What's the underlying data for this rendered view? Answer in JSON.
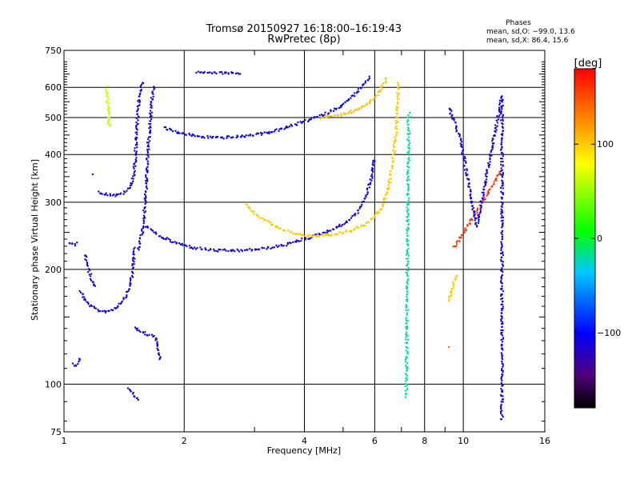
{
  "chart_data": {
    "type": "scatter",
    "title": "Tromsø 20150927 16:18:00–16:19:43",
    "subtitle": "RwPretec (8p)",
    "xlabel": "Frequency [MHz]",
    "ylabel": "Stationary phase Virtual Height [km]",
    "x_scale": "log",
    "y_scale": "log",
    "xlim": [
      1,
      16
    ],
    "ylim": [
      75,
      750
    ],
    "x_ticks": [
      1,
      2,
      4,
      6,
      8,
      10,
      16
    ],
    "x_tick_labels": [
      "1",
      "2",
      "4",
      "6",
      "8",
      "10",
      "16"
    ],
    "x_minor": [
      3,
      5,
      7,
      9
    ],
    "y_ticks": [
      75,
      100,
      200,
      300,
      400,
      500,
      600,
      750
    ],
    "y_tick_labels": [
      "75",
      "100",
      "200",
      "300",
      "400",
      "500",
      "600",
      "750"
    ],
    "grid": true,
    "phases_block": {
      "heading": "Phases",
      "line_o": "mean, sd,O: −99.0, 13.6",
      "line_x": "mean, sd,X:  86.4, 15.6"
    },
    "colorbar": {
      "label": "[deg]",
      "range": [
        -180,
        180
      ],
      "ticks": [
        100,
        0,
        -100
      ],
      "tick_labels": [
        "100",
        "0",
        "−100"
      ]
    },
    "traces": [
      {
        "phase": -110,
        "points": [
          [
            1.05,
            113
          ],
          [
            1.07,
            112
          ],
          [
            1.09,
            115
          ],
          [
            1.1,
            118
          ]
        ]
      },
      {
        "phase": -110,
        "points": [
          [
            1.03,
            235
          ],
          [
            1.06,
            232
          ],
          [
            1.08,
            235
          ]
        ]
      },
      {
        "phase": -110,
        "points": [
          [
            1.1,
            175
          ],
          [
            1.13,
            165
          ],
          [
            1.17,
            160
          ],
          [
            1.22,
            156
          ],
          [
            1.27,
            155
          ],
          [
            1.33,
            157
          ],
          [
            1.38,
            162
          ],
          [
            1.42,
            168
          ],
          [
            1.46,
            180
          ],
          [
            1.49,
            200
          ],
          [
            1.5,
            230
          ]
        ]
      },
      {
        "phase": -110,
        "points": [
          [
            1.13,
            218
          ],
          [
            1.15,
            200
          ],
          [
            1.18,
            185
          ],
          [
            1.2,
            180
          ]
        ]
      },
      {
        "phase": -110,
        "points": [
          [
            1.22,
            318
          ],
          [
            1.28,
            315
          ],
          [
            1.35,
            312
          ],
          [
            1.42,
            318
          ],
          [
            1.47,
            330
          ],
          [
            1.5,
            360
          ],
          [
            1.51,
            400
          ],
          [
            1.52,
            450
          ],
          [
            1.53,
            500
          ],
          [
            1.54,
            550
          ],
          [
            1.56,
            600
          ],
          [
            1.58,
            625
          ]
        ]
      },
      {
        "phase": -110,
        "points": [
          [
            1.53,
            225
          ],
          [
            1.57,
            250
          ],
          [
            1.6,
            300
          ],
          [
            1.62,
            400
          ],
          [
            1.64,
            480
          ],
          [
            1.66,
            560
          ],
          [
            1.68,
            610
          ]
        ]
      },
      {
        "phase": -110,
        "points": [
          [
            1.6,
            260
          ],
          [
            1.72,
            245
          ],
          [
            1.9,
            235
          ],
          [
            2.1,
            228
          ],
          [
            2.4,
            224
          ],
          [
            2.8,
            224
          ],
          [
            3.2,
            227
          ],
          [
            3.6,
            232
          ],
          [
            4.0,
            240
          ],
          [
            4.5,
            250
          ],
          [
            5.0,
            262
          ],
          [
            5.4,
            280
          ],
          [
            5.7,
            310
          ],
          [
            5.9,
            350
          ],
          [
            6.0,
            390
          ]
        ]
      },
      {
        "phase": -100,
        "points": [
          [
            1.78,
            470
          ],
          [
            1.95,
            455
          ],
          [
            2.2,
            445
          ],
          [
            2.5,
            443
          ],
          [
            2.8,
            446
          ],
          [
            3.2,
            455
          ],
          [
            3.6,
            470
          ],
          [
            4.0,
            488
          ],
          [
            4.5,
            510
          ],
          [
            5.0,
            540
          ],
          [
            5.4,
            580
          ],
          [
            5.7,
            620
          ],
          [
            5.85,
            640
          ]
        ]
      },
      {
        "phase": 100,
        "points": [
          [
            2.85,
            295
          ],
          [
            3.0,
            280
          ],
          [
            3.2,
            268
          ],
          [
            3.5,
            255
          ],
          [
            3.8,
            248
          ],
          [
            4.2,
            244
          ],
          [
            4.7,
            246
          ],
          [
            5.2,
            252
          ],
          [
            5.7,
            262
          ],
          [
            6.2,
            285
          ],
          [
            6.5,
            330
          ],
          [
            6.7,
            400
          ],
          [
            6.8,
            480
          ],
          [
            6.85,
            560
          ],
          [
            6.88,
            620
          ]
        ]
      },
      {
        "phase": 105,
        "points": [
          [
            4.4,
            500
          ],
          [
            4.8,
            505
          ],
          [
            5.3,
            520
          ],
          [
            5.8,
            545
          ],
          [
            6.1,
            575
          ],
          [
            6.3,
            610
          ],
          [
            6.45,
            640
          ]
        ]
      },
      {
        "phase": -110,
        "points": [
          [
            2.15,
            655
          ],
          [
            2.4,
            655
          ],
          [
            2.6,
            655
          ],
          [
            2.8,
            654
          ]
        ]
      },
      {
        "phase": 60,
        "points": [
          [
            1.28,
            600
          ],
          [
            1.3,
            470
          ]
        ]
      },
      {
        "phase": -120,
        "points": [
          [
            1.18,
            355
          ]
        ]
      },
      {
        "phase": -110,
        "points": [
          [
            1.45,
            97
          ],
          [
            1.52,
            92
          ],
          [
            1.55,
            90
          ]
        ]
      },
      {
        "phase": -110,
        "points": [
          [
            1.5,
            140
          ],
          [
            1.7,
            132
          ],
          [
            1.75,
            115
          ]
        ]
      },
      {
        "phase": 100,
        "points": [
          [
            9.2,
            165
          ],
          [
            9.6,
            195
          ]
        ]
      },
      {
        "phase": 160,
        "points": [
          [
            9.5,
            228
          ],
          [
            12.5,
            365
          ]
        ]
      },
      {
        "phase": 140,
        "points": [
          [
            9.2,
            125
          ]
        ]
      },
      {
        "phase": -110,
        "points": [
          [
            9.2,
            530
          ],
          [
            9.8,
            445
          ],
          [
            10.8,
            260
          ],
          [
            12.5,
            570
          ],
          [
            12.5,
            95
          ],
          [
            12.5,
            88
          ],
          [
            12.5,
            80
          ]
        ]
      },
      {
        "phase": -20,
        "points": [
          [
            7.2,
            93
          ],
          [
            7.3,
            520
          ]
        ]
      }
    ]
  }
}
